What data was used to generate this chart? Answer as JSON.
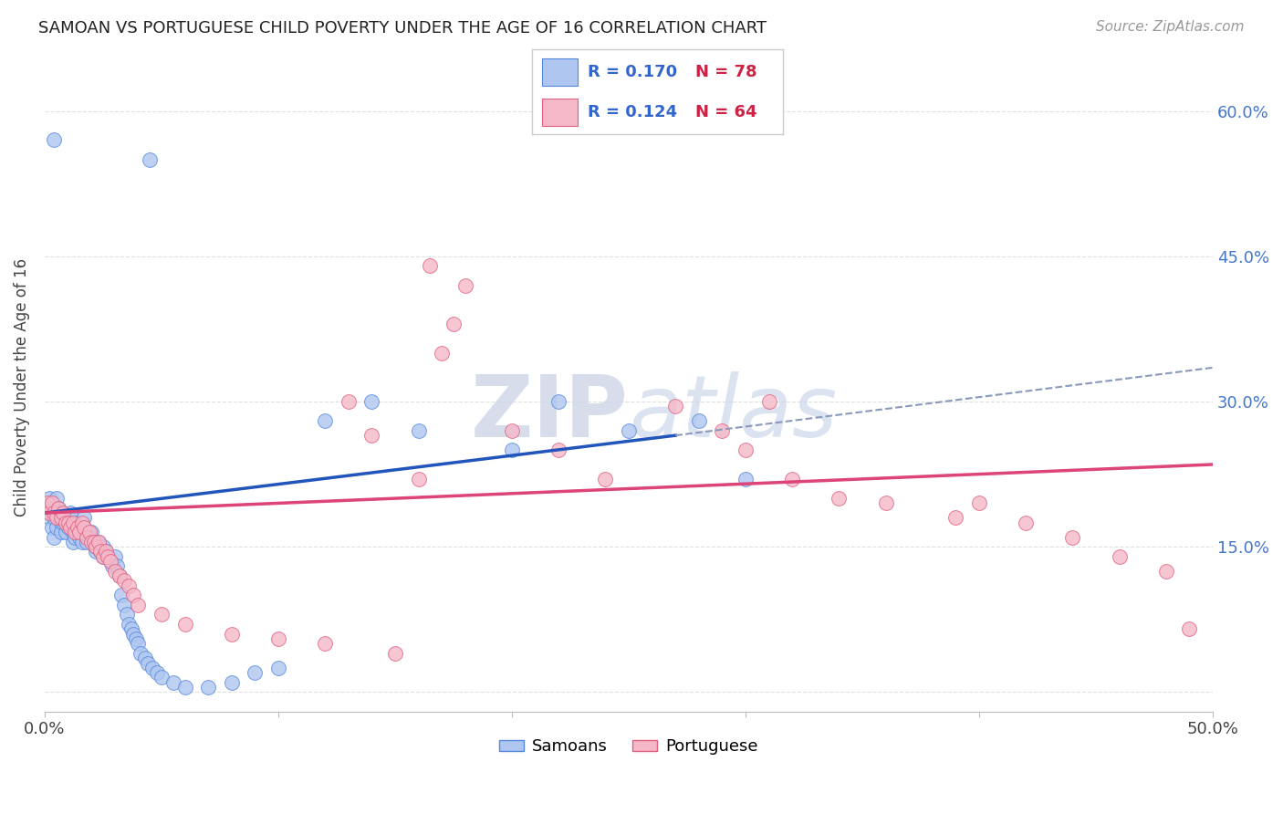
{
  "title": "SAMOAN VS PORTUGUESE CHILD POVERTY UNDER THE AGE OF 16 CORRELATION CHART",
  "source": "Source: ZipAtlas.com",
  "ylabel": "Child Poverty Under the Age of 16",
  "xlim": [
    0,
    0.5
  ],
  "ylim": [
    -0.02,
    0.65
  ],
  "samoan_R": 0.17,
  "samoan_N": 78,
  "portuguese_R": 0.124,
  "portuguese_N": 64,
  "samoan_color": "#aec6f0",
  "portuguese_color": "#f5b8c8",
  "samoan_edge_color": "#5588dd",
  "portuguese_edge_color": "#e06080",
  "samoan_line_color": "#2255bb",
  "portuguese_line_color": "#dd4477",
  "blue_line_solid_end": 0.27,
  "blue_line_start_y": 0.185,
  "blue_line_end_y_solid": 0.265,
  "blue_line_end_y_dash": 0.335,
  "pink_line_start_y": 0.185,
  "pink_line_end_y": 0.235,
  "watermark_color": "#d0d8e8",
  "grid_color": "#e0e0e0",
  "background_color": "#ffffff",
  "samoan_x": [
    0.001,
    0.002,
    0.002,
    0.003,
    0.003,
    0.004,
    0.004,
    0.005,
    0.005,
    0.006,
    0.006,
    0.007,
    0.007,
    0.008,
    0.008,
    0.009,
    0.009,
    0.01,
    0.01,
    0.011,
    0.011,
    0.012,
    0.012,
    0.013,
    0.013,
    0.014,
    0.015,
    0.015,
    0.016,
    0.017,
    0.017,
    0.018,
    0.019,
    0.02,
    0.021,
    0.022,
    0.022,
    0.023,
    0.024,
    0.025,
    0.025,
    0.026,
    0.027,
    0.028,
    0.029,
    0.03,
    0.031,
    0.032,
    0.033,
    0.034,
    0.035,
    0.036,
    0.037,
    0.038,
    0.039,
    0.04,
    0.041,
    0.043,
    0.044,
    0.046,
    0.048,
    0.05,
    0.055,
    0.06,
    0.07,
    0.08,
    0.09,
    0.1,
    0.12,
    0.14,
    0.16,
    0.2,
    0.22,
    0.25,
    0.28,
    0.3,
    0.004,
    0.045
  ],
  "samoan_y": [
    0.19,
    0.18,
    0.2,
    0.17,
    0.19,
    0.16,
    0.18,
    0.17,
    0.2,
    0.18,
    0.19,
    0.175,
    0.165,
    0.185,
    0.175,
    0.175,
    0.165,
    0.18,
    0.17,
    0.175,
    0.185,
    0.165,
    0.155,
    0.17,
    0.16,
    0.175,
    0.16,
    0.17,
    0.155,
    0.17,
    0.18,
    0.155,
    0.16,
    0.165,
    0.155,
    0.145,
    0.15,
    0.155,
    0.145,
    0.14,
    0.15,
    0.145,
    0.14,
    0.135,
    0.13,
    0.14,
    0.13,
    0.12,
    0.1,
    0.09,
    0.08,
    0.07,
    0.065,
    0.06,
    0.055,
    0.05,
    0.04,
    0.035,
    0.03,
    0.025,
    0.02,
    0.015,
    0.01,
    0.005,
    0.005,
    0.01,
    0.02,
    0.025,
    0.28,
    0.3,
    0.27,
    0.25,
    0.3,
    0.27,
    0.28,
    0.22,
    0.57,
    0.55
  ],
  "portuguese_x": [
    0.001,
    0.002,
    0.003,
    0.004,
    0.005,
    0.006,
    0.007,
    0.008,
    0.009,
    0.01,
    0.011,
    0.012,
    0.013,
    0.014,
    0.015,
    0.016,
    0.017,
    0.018,
    0.019,
    0.02,
    0.021,
    0.022,
    0.023,
    0.024,
    0.025,
    0.026,
    0.027,
    0.028,
    0.03,
    0.032,
    0.034,
    0.036,
    0.038,
    0.04,
    0.05,
    0.06,
    0.08,
    0.1,
    0.12,
    0.15,
    0.165,
    0.17,
    0.175,
    0.18,
    0.2,
    0.22,
    0.24,
    0.27,
    0.29,
    0.3,
    0.32,
    0.34,
    0.36,
    0.39,
    0.4,
    0.42,
    0.44,
    0.46,
    0.48,
    0.49,
    0.13,
    0.14,
    0.16,
    0.31
  ],
  "portuguese_y": [
    0.195,
    0.185,
    0.195,
    0.185,
    0.18,
    0.19,
    0.18,
    0.185,
    0.175,
    0.175,
    0.17,
    0.175,
    0.165,
    0.17,
    0.165,
    0.175,
    0.17,
    0.16,
    0.165,
    0.155,
    0.155,
    0.15,
    0.155,
    0.145,
    0.14,
    0.145,
    0.14,
    0.135,
    0.125,
    0.12,
    0.115,
    0.11,
    0.1,
    0.09,
    0.08,
    0.07,
    0.06,
    0.055,
    0.05,
    0.04,
    0.44,
    0.35,
    0.38,
    0.42,
    0.27,
    0.25,
    0.22,
    0.295,
    0.27,
    0.25,
    0.22,
    0.2,
    0.195,
    0.18,
    0.195,
    0.175,
    0.16,
    0.14,
    0.125,
    0.065,
    0.3,
    0.265,
    0.22,
    0.3
  ]
}
